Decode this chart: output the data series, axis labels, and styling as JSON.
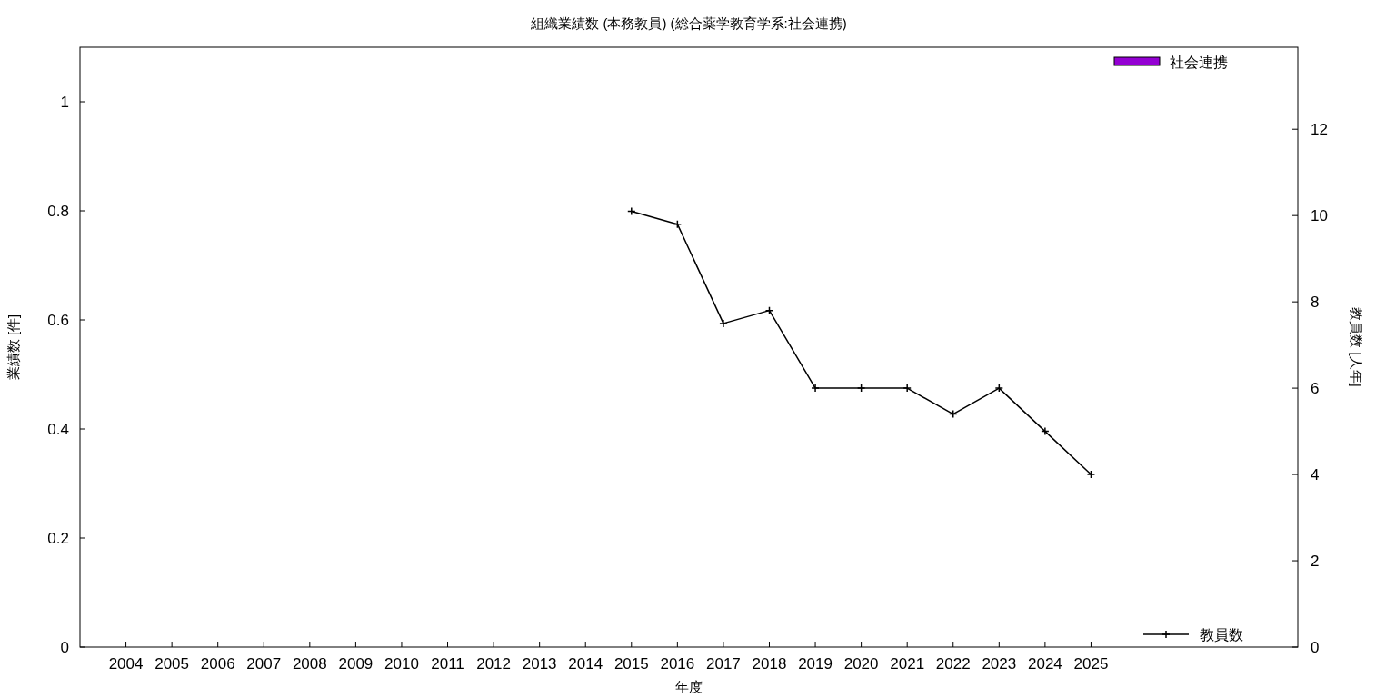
{
  "chart_data": {
    "type": "line",
    "title": "組織業績数 (本務教員) (総合薬学教育学系:社会連携)",
    "xlabel": "年度",
    "ylabel": "業績数 [件]",
    "y2label": "教員数 [人年]",
    "x": [
      2004,
      2005,
      2006,
      2007,
      2008,
      2009,
      2010,
      2011,
      2012,
      2013,
      2014,
      2015,
      2016,
      2017,
      2018,
      2019,
      2020,
      2021,
      2022,
      2023,
      2024,
      2025
    ],
    "xlim": [
      2003,
      2029.5
    ],
    "xticks": [
      2004,
      2005,
      2006,
      2007,
      2008,
      2009,
      2010,
      2011,
      2012,
      2013,
      2014,
      2015,
      2016,
      2017,
      2018,
      2019,
      2020,
      2021,
      2022,
      2023,
      2024,
      2025
    ],
    "ylim": [
      0,
      1.1
    ],
    "yticks": [
      0,
      0.2,
      0.4,
      0.6,
      0.8,
      1
    ],
    "y2lim": [
      0,
      13.9
    ],
    "y2ticks": [
      0,
      2,
      4,
      6,
      8,
      10,
      12
    ],
    "series": [
      {
        "name": "社会連携",
        "type": "bar",
        "color": "#9400d3",
        "values": [
          0,
          0,
          0,
          0,
          0,
          0,
          0,
          0,
          0,
          0,
          0,
          0,
          0,
          0,
          0,
          0,
          0,
          0,
          0,
          0,
          0,
          0
        ]
      },
      {
        "name": "教員数",
        "axis": "y2",
        "color": "#000000",
        "marker": "cross",
        "values": [
          null,
          null,
          null,
          null,
          null,
          null,
          null,
          null,
          null,
          null,
          null,
          10.1,
          9.8,
          7.5,
          7.8,
          6,
          6,
          6,
          5.4,
          6,
          5,
          4
        ]
      }
    ],
    "legend": "right",
    "grid": false
  }
}
